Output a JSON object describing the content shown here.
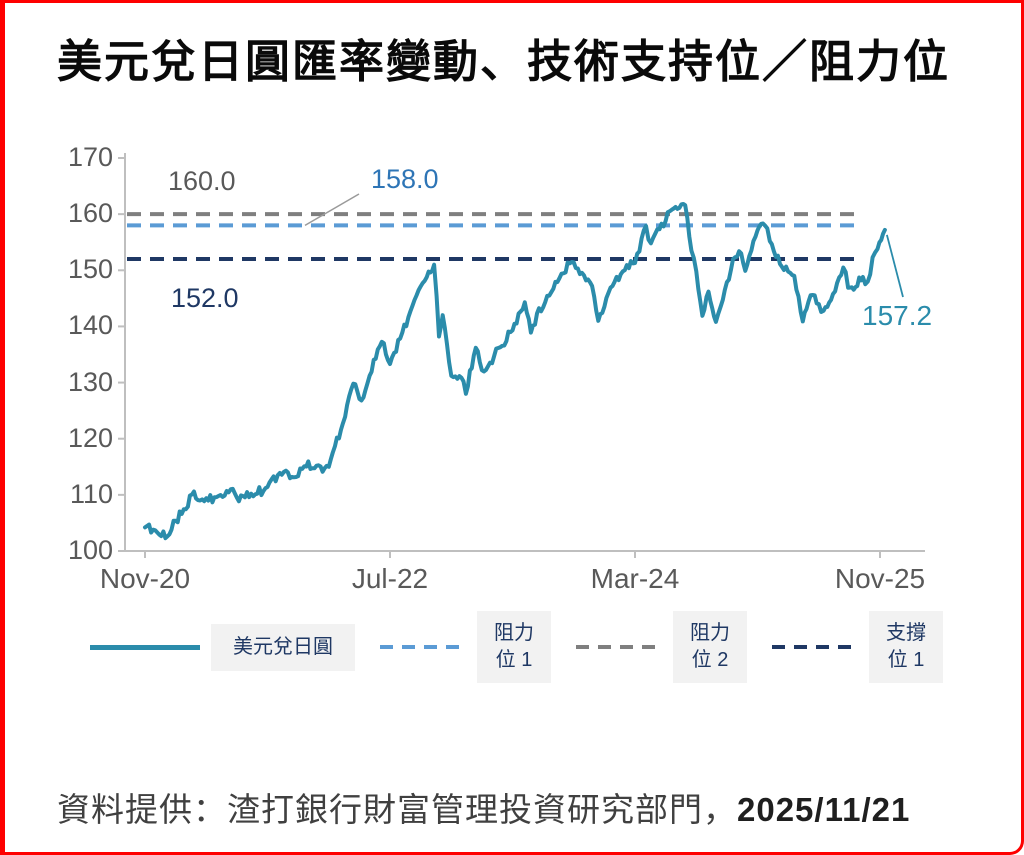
{
  "title": "美元兌日圓匯率變動、技術支持位／阻力位",
  "footer": {
    "text": "資料提供：渣打銀行財富管理投資研究部門，",
    "date": "2025/11/21"
  },
  "colors": {
    "series": "#2b8cab",
    "axis": "#bfbfbf",
    "axis_text": "#595959",
    "border": "#fe0000",
    "legend_text": "#1f3864",
    "legend_bg": "#f2f2f2"
  },
  "chart_data": {
    "type": "line",
    "title": "美元兌日圓匯率變動、技術支持位／阻力位",
    "xlabel": "",
    "ylabel": "",
    "ylim": [
      100,
      170
    ],
    "y_ticks": [
      100,
      110,
      120,
      130,
      140,
      150,
      160,
      170
    ],
    "x_ticks": [
      {
        "t": 0,
        "label": "Nov-20"
      },
      {
        "t": 20,
        "label": "Jul-22"
      },
      {
        "t": 40,
        "label": "Mar-24"
      },
      {
        "t": 60,
        "label": "Nov-25"
      }
    ],
    "grid": false,
    "legend_position": "bottom",
    "series": [
      {
        "name": "美元兌日圓",
        "color": "#2b8cab",
        "points": [
          [
            0,
            104.2
          ],
          [
            1,
            103.3
          ],
          [
            2,
            103.0
          ],
          [
            2.5,
            105.4
          ],
          [
            3,
            106.6
          ],
          [
            4,
            110.6
          ],
          [
            4.5,
            109.0
          ],
          [
            5,
            109.4
          ],
          [
            6,
            109.8
          ],
          [
            7,
            111.0
          ],
          [
            7.5,
            109.5
          ],
          [
            8,
            109.8
          ],
          [
            9,
            110.1
          ],
          [
            10,
            111.4
          ],
          [
            11,
            113.9
          ],
          [
            11.5,
            114.3
          ],
          [
            12,
            113.2
          ],
          [
            13,
            115.1
          ],
          [
            14,
            115.2
          ],
          [
            14.5,
            114.1
          ],
          [
            15,
            115.0
          ],
          [
            16,
            121.6
          ],
          [
            17,
            129.8
          ],
          [
            17.5,
            127.1
          ],
          [
            18,
            128.7
          ],
          [
            19,
            135.9
          ],
          [
            19.5,
            137.0
          ],
          [
            20,
            133.3
          ],
          [
            21,
            138.9
          ],
          [
            22,
            144.7
          ],
          [
            23,
            148.8
          ],
          [
            23.6,
            151.0
          ],
          [
            24,
            138.2
          ],
          [
            24.3,
            142.0
          ],
          [
            25,
            131.2
          ],
          [
            26,
            130.2
          ],
          [
            26.2,
            128.0
          ],
          [
            27,
            136.2
          ],
          [
            27.5,
            132.2
          ],
          [
            28,
            132.9
          ],
          [
            29,
            136.3
          ],
          [
            30,
            139.3
          ],
          [
            31,
            144.3
          ],
          [
            31.5,
            138.9
          ],
          [
            32,
            142.3
          ],
          [
            33,
            145.5
          ],
          [
            34,
            149.4
          ],
          [
            35,
            151.4
          ],
          [
            36,
            148.2
          ],
          [
            36.5,
            147.2
          ],
          [
            37,
            141.0
          ],
          [
            38,
            146.9
          ],
          [
            39,
            149.8
          ],
          [
            40,
            151.3
          ],
          [
            40.9,
            157.9
          ],
          [
            41.3,
            154.8
          ],
          [
            42,
            157.3
          ],
          [
            43,
            160.8
          ],
          [
            44.1,
            161.6
          ],
          [
            44.6,
            153.5
          ],
          [
            45,
            149.8
          ],
          [
            45.5,
            141.9
          ],
          [
            46,
            146.2
          ],
          [
            46.6,
            140.8
          ],
          [
            47,
            143.6
          ],
          [
            48,
            152.0
          ],
          [
            48.5,
            153.4
          ],
          [
            49,
            149.9
          ],
          [
            50,
            157.1
          ],
          [
            50.6,
            158.0
          ],
          [
            51,
            155.2
          ],
          [
            52,
            150.6
          ],
          [
            53,
            149.0
          ],
          [
            53.7,
            140.9
          ],
          [
            54,
            143.1
          ],
          [
            54.5,
            145.6
          ],
          [
            55,
            144.0
          ],
          [
            55.4,
            142.8
          ],
          [
            56,
            144.7
          ],
          [
            57,
            150.5
          ],
          [
            57.4,
            146.9
          ],
          [
            58,
            147.0
          ],
          [
            58.6,
            148.8
          ],
          [
            59,
            148.0
          ],
          [
            59.4,
            152.3
          ],
          [
            59.8,
            153.8
          ],
          [
            60.1,
            155.4
          ],
          [
            60.4,
            157.2
          ]
        ]
      }
    ],
    "levels": [
      {
        "name": "阻力位 2",
        "value": 160.0,
        "label": "160.0",
        "line_color": "#7f7f7f",
        "label_color": "#595959"
      },
      {
        "name": "阻力位 1",
        "value": 158.0,
        "label": "158.0",
        "line_color": "#5b9bd5",
        "label_color": "#2e75b6"
      },
      {
        "name": "支撐位 1",
        "value": 152.0,
        "label": "152.0",
        "line_color": "#1f3864",
        "label_color": "#1f3864"
      }
    ],
    "last_value": 157.2,
    "last_value_label": "157.2",
    "legend": [
      {
        "label": "美元兌日圓",
        "line": "solid",
        "color": "#2b8cab"
      },
      {
        "label": "阻力位 1",
        "line": "dashed",
        "color": "#5b9bd5"
      },
      {
        "label": "阻力位 2",
        "line": "dashed",
        "color": "#7f7f7f"
      },
      {
        "label": "支撐位 1",
        "line": "dashed",
        "color": "#1f3864"
      }
    ]
  }
}
